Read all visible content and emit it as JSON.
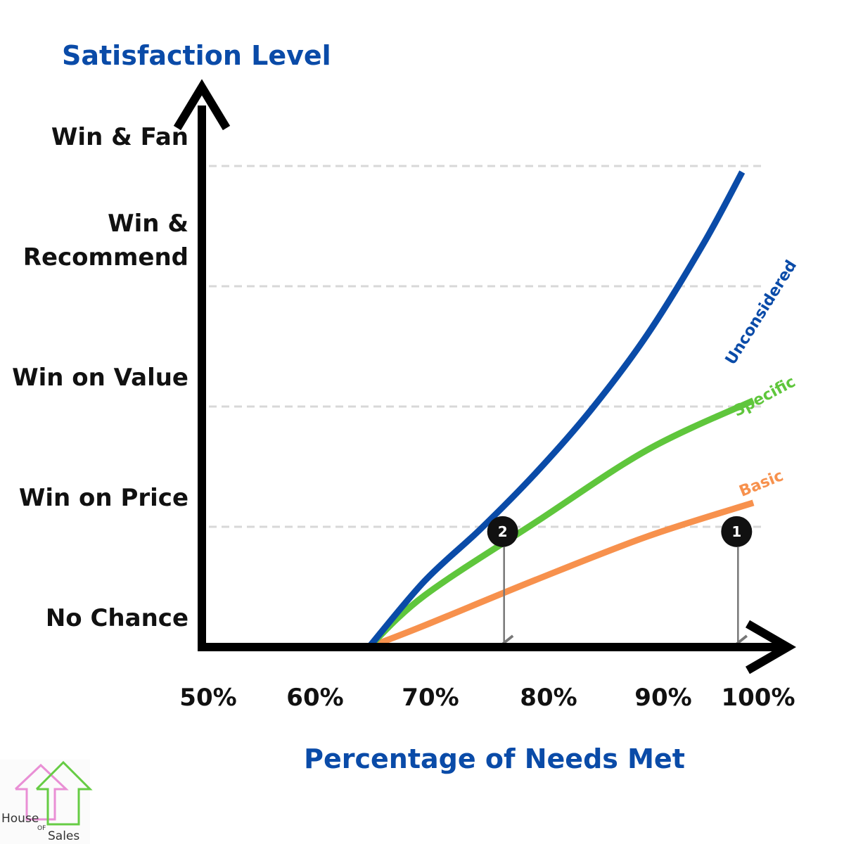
{
  "chart_data": {
    "type": "line",
    "ylabel": "Satisfaction Level",
    "xlabel": "Percentage of Needs Met",
    "x_ticks": [
      "50%",
      "60%",
      "70%",
      "80%",
      "90%",
      "100%"
    ],
    "xlim": [
      50,
      100
    ],
    "y_levels": [
      {
        "label": "No Chance",
        "value": 0
      },
      {
        "label": "Win on Price",
        "value": 1
      },
      {
        "label": "Win on Value",
        "value": 2
      },
      {
        "label": "Win  &\nRecommend",
        "value": 3
      },
      {
        "label": "Win & Fan",
        "value": 4
      }
    ],
    "ylim": [
      0,
      4
    ],
    "grid": true,
    "series": [
      {
        "name": "Basic",
        "color": "#f7914d",
        "points": [
          [
            65,
            0
          ],
          [
            70,
            0.18
          ],
          [
            80,
            0.56
          ],
          [
            90,
            0.92
          ],
          [
            99.5,
            1.2
          ]
        ]
      },
      {
        "name": "Specific",
        "color": "#5fc63c",
        "points": [
          [
            65,
            0
          ],
          [
            70,
            0.43
          ],
          [
            80,
            1.04
          ],
          [
            90,
            1.64
          ],
          [
            99.5,
            2.05
          ]
        ]
      },
      {
        "name": "Unconsidered",
        "color": "#0a4ba8",
        "points": [
          [
            65,
            0
          ],
          [
            70,
            0.55
          ],
          [
            75,
            0.98
          ],
          [
            80,
            1.45
          ],
          [
            85,
            1.98
          ],
          [
            90,
            2.6
          ],
          [
            95,
            3.35
          ],
          [
            98.5,
            3.95
          ]
        ]
      }
    ],
    "markers": [
      {
        "label": "1",
        "x": 98,
        "y": 0.96
      },
      {
        "label": "2",
        "x": 77,
        "y": 0.96
      }
    ]
  },
  "logo": {
    "line1": "House",
    "line2": "OF",
    "line3": "Sales"
  }
}
